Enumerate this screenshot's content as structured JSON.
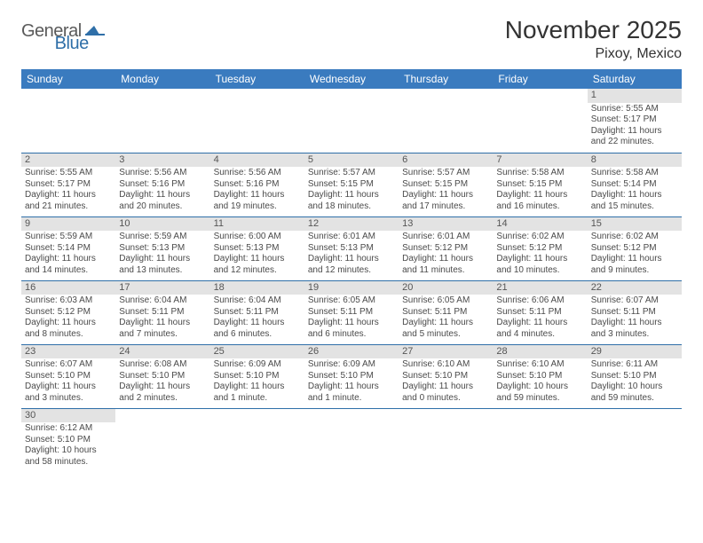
{
  "logo": {
    "general": "General",
    "blue": "Blue"
  },
  "header": {
    "title": "November 2025",
    "location": "Pixoy, Mexico"
  },
  "colors": {
    "header_bg": "#3a7bbf",
    "header_fg": "#ffffff",
    "row_border": "#2f6fa8",
    "daynum_bg": "#e3e3e3",
    "text": "#4a4a4a"
  },
  "calendar": {
    "days_of_week": [
      "Sunday",
      "Monday",
      "Tuesday",
      "Wednesday",
      "Thursday",
      "Friday",
      "Saturday"
    ],
    "weeks": [
      [
        null,
        null,
        null,
        null,
        null,
        null,
        {
          "n": "1",
          "sr": "Sunrise: 5:55 AM",
          "ss": "Sunset: 5:17 PM",
          "d1": "Daylight: 11 hours",
          "d2": "and 22 minutes."
        }
      ],
      [
        {
          "n": "2",
          "sr": "Sunrise: 5:55 AM",
          "ss": "Sunset: 5:17 PM",
          "d1": "Daylight: 11 hours",
          "d2": "and 21 minutes."
        },
        {
          "n": "3",
          "sr": "Sunrise: 5:56 AM",
          "ss": "Sunset: 5:16 PM",
          "d1": "Daylight: 11 hours",
          "d2": "and 20 minutes."
        },
        {
          "n": "4",
          "sr": "Sunrise: 5:56 AM",
          "ss": "Sunset: 5:16 PM",
          "d1": "Daylight: 11 hours",
          "d2": "and 19 minutes."
        },
        {
          "n": "5",
          "sr": "Sunrise: 5:57 AM",
          "ss": "Sunset: 5:15 PM",
          "d1": "Daylight: 11 hours",
          "d2": "and 18 minutes."
        },
        {
          "n": "6",
          "sr": "Sunrise: 5:57 AM",
          "ss": "Sunset: 5:15 PM",
          "d1": "Daylight: 11 hours",
          "d2": "and 17 minutes."
        },
        {
          "n": "7",
          "sr": "Sunrise: 5:58 AM",
          "ss": "Sunset: 5:15 PM",
          "d1": "Daylight: 11 hours",
          "d2": "and 16 minutes."
        },
        {
          "n": "8",
          "sr": "Sunrise: 5:58 AM",
          "ss": "Sunset: 5:14 PM",
          "d1": "Daylight: 11 hours",
          "d2": "and 15 minutes."
        }
      ],
      [
        {
          "n": "9",
          "sr": "Sunrise: 5:59 AM",
          "ss": "Sunset: 5:14 PM",
          "d1": "Daylight: 11 hours",
          "d2": "and 14 minutes."
        },
        {
          "n": "10",
          "sr": "Sunrise: 5:59 AM",
          "ss": "Sunset: 5:13 PM",
          "d1": "Daylight: 11 hours",
          "d2": "and 13 minutes."
        },
        {
          "n": "11",
          "sr": "Sunrise: 6:00 AM",
          "ss": "Sunset: 5:13 PM",
          "d1": "Daylight: 11 hours",
          "d2": "and 12 minutes."
        },
        {
          "n": "12",
          "sr": "Sunrise: 6:01 AM",
          "ss": "Sunset: 5:13 PM",
          "d1": "Daylight: 11 hours",
          "d2": "and 12 minutes."
        },
        {
          "n": "13",
          "sr": "Sunrise: 6:01 AM",
          "ss": "Sunset: 5:12 PM",
          "d1": "Daylight: 11 hours",
          "d2": "and 11 minutes."
        },
        {
          "n": "14",
          "sr": "Sunrise: 6:02 AM",
          "ss": "Sunset: 5:12 PM",
          "d1": "Daylight: 11 hours",
          "d2": "and 10 minutes."
        },
        {
          "n": "15",
          "sr": "Sunrise: 6:02 AM",
          "ss": "Sunset: 5:12 PM",
          "d1": "Daylight: 11 hours",
          "d2": "and 9 minutes."
        }
      ],
      [
        {
          "n": "16",
          "sr": "Sunrise: 6:03 AM",
          "ss": "Sunset: 5:12 PM",
          "d1": "Daylight: 11 hours",
          "d2": "and 8 minutes."
        },
        {
          "n": "17",
          "sr": "Sunrise: 6:04 AM",
          "ss": "Sunset: 5:11 PM",
          "d1": "Daylight: 11 hours",
          "d2": "and 7 minutes."
        },
        {
          "n": "18",
          "sr": "Sunrise: 6:04 AM",
          "ss": "Sunset: 5:11 PM",
          "d1": "Daylight: 11 hours",
          "d2": "and 6 minutes."
        },
        {
          "n": "19",
          "sr": "Sunrise: 6:05 AM",
          "ss": "Sunset: 5:11 PM",
          "d1": "Daylight: 11 hours",
          "d2": "and 6 minutes."
        },
        {
          "n": "20",
          "sr": "Sunrise: 6:05 AM",
          "ss": "Sunset: 5:11 PM",
          "d1": "Daylight: 11 hours",
          "d2": "and 5 minutes."
        },
        {
          "n": "21",
          "sr": "Sunrise: 6:06 AM",
          "ss": "Sunset: 5:11 PM",
          "d1": "Daylight: 11 hours",
          "d2": "and 4 minutes."
        },
        {
          "n": "22",
          "sr": "Sunrise: 6:07 AM",
          "ss": "Sunset: 5:11 PM",
          "d1": "Daylight: 11 hours",
          "d2": "and 3 minutes."
        }
      ],
      [
        {
          "n": "23",
          "sr": "Sunrise: 6:07 AM",
          "ss": "Sunset: 5:10 PM",
          "d1": "Daylight: 11 hours",
          "d2": "and 3 minutes."
        },
        {
          "n": "24",
          "sr": "Sunrise: 6:08 AM",
          "ss": "Sunset: 5:10 PM",
          "d1": "Daylight: 11 hours",
          "d2": "and 2 minutes."
        },
        {
          "n": "25",
          "sr": "Sunrise: 6:09 AM",
          "ss": "Sunset: 5:10 PM",
          "d1": "Daylight: 11 hours",
          "d2": "and 1 minute."
        },
        {
          "n": "26",
          "sr": "Sunrise: 6:09 AM",
          "ss": "Sunset: 5:10 PM",
          "d1": "Daylight: 11 hours",
          "d2": "and 1 minute."
        },
        {
          "n": "27",
          "sr": "Sunrise: 6:10 AM",
          "ss": "Sunset: 5:10 PM",
          "d1": "Daylight: 11 hours",
          "d2": "and 0 minutes."
        },
        {
          "n": "28",
          "sr": "Sunrise: 6:10 AM",
          "ss": "Sunset: 5:10 PM",
          "d1": "Daylight: 10 hours",
          "d2": "and 59 minutes."
        },
        {
          "n": "29",
          "sr": "Sunrise: 6:11 AM",
          "ss": "Sunset: 5:10 PM",
          "d1": "Daylight: 10 hours",
          "d2": "and 59 minutes."
        }
      ],
      [
        {
          "n": "30",
          "sr": "Sunrise: 6:12 AM",
          "ss": "Sunset: 5:10 PM",
          "d1": "Daylight: 10 hours",
          "d2": "and 58 minutes."
        },
        null,
        null,
        null,
        null,
        null,
        null
      ]
    ]
  }
}
